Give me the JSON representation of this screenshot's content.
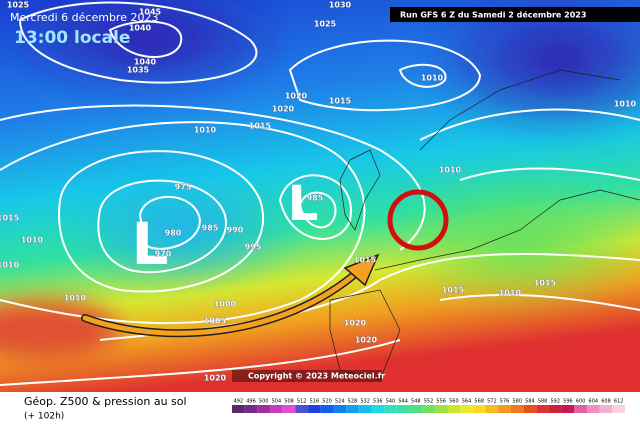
{
  "header": {
    "date": "Mercredi 6 décembre 2023",
    "time": "13:00 locale",
    "run": "Run GFS 6 Z du Samedi 2 décembre 2023"
  },
  "footer": {
    "title": "Géop. Z500 & pression au sol",
    "lead": "(+ 102h)",
    "copyright": "Copyright © 2023 Meteociel.fr"
  },
  "scale": {
    "labels": [
      "492",
      "496",
      "500",
      "504",
      "508",
      "512",
      "516",
      "520",
      "524",
      "528",
      "532",
      "536",
      "540",
      "544",
      "548",
      "552",
      "556",
      "560",
      "564",
      "568",
      "572",
      "576",
      "580",
      "584",
      "588",
      "592",
      "596",
      "600",
      "604",
      "608",
      "612"
    ]
  },
  "lows": [
    "L",
    "L"
  ],
  "isobars": [
    "1025",
    "1045",
    "1040",
    "1040",
    "1035",
    "1030",
    "1025",
    "1010",
    "1020",
    "1020",
    "1015",
    "1015",
    "1010",
    "975",
    "980",
    "985",
    "990",
    "995",
    "970",
    "985",
    "1015",
    "1010",
    "1010",
    "1010",
    "1000",
    "1005",
    "1020",
    "1020",
    "1020",
    "1015",
    "1010",
    "1015",
    "1010",
    "1010",
    "1015"
  ]
}
